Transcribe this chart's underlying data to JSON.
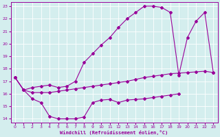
{
  "xlabel": "Windchill (Refroidissement éolien,°C)",
  "bg_color": "#d4eeee",
  "line_color": "#990099",
  "grid_color": "#b8dede",
  "xlim": [
    -0.5,
    23.5
  ],
  "ylim": [
    13.7,
    23.3
  ],
  "xticks": [
    0,
    1,
    2,
    3,
    4,
    5,
    6,
    7,
    8,
    9,
    10,
    11,
    12,
    13,
    14,
    15,
    16,
    17,
    18,
    19,
    20,
    21,
    22,
    23
  ],
  "yticks": [
    14,
    15,
    16,
    17,
    18,
    19,
    20,
    21,
    22,
    23
  ],
  "line1_x": [
    0,
    1,
    2,
    3,
    4,
    5,
    6,
    7,
    8,
    9,
    10,
    11,
    12,
    13,
    14,
    15,
    16,
    17,
    18,
    19
  ],
  "line1_y": [
    17.3,
    16.3,
    15.6,
    15.3,
    14.2,
    14.0,
    14.0,
    14.0,
    14.15,
    15.3,
    15.5,
    15.55,
    15.3,
    15.5,
    15.55,
    15.6,
    15.7,
    15.8,
    15.9,
    16.0
  ],
  "line2_x": [
    0,
    1,
    2,
    3,
    4,
    5,
    6,
    7,
    8,
    9,
    10,
    11,
    12,
    13,
    14,
    15,
    16,
    17,
    18,
    19,
    20,
    21,
    22,
    23
  ],
  "line2_y": [
    17.3,
    16.3,
    16.5,
    16.6,
    16.7,
    16.5,
    16.6,
    17.0,
    18.5,
    19.2,
    19.9,
    20.5,
    21.3,
    22.0,
    22.5,
    23.0,
    23.0,
    22.9,
    22.5,
    17.5,
    20.5,
    21.8,
    22.5,
    17.7
  ],
  "line3_x": [
    0,
    1,
    2,
    3,
    4,
    5,
    6,
    7,
    8,
    9,
    10,
    11,
    12,
    13,
    14,
    15,
    16,
    17,
    18,
    19,
    20,
    21,
    22,
    23
  ],
  "line3_y": [
    17.3,
    16.3,
    16.1,
    16.1,
    16.1,
    16.2,
    16.3,
    16.4,
    16.5,
    16.6,
    16.7,
    16.8,
    16.9,
    17.0,
    17.15,
    17.3,
    17.4,
    17.5,
    17.6,
    17.65,
    17.7,
    17.75,
    17.8,
    17.7
  ]
}
